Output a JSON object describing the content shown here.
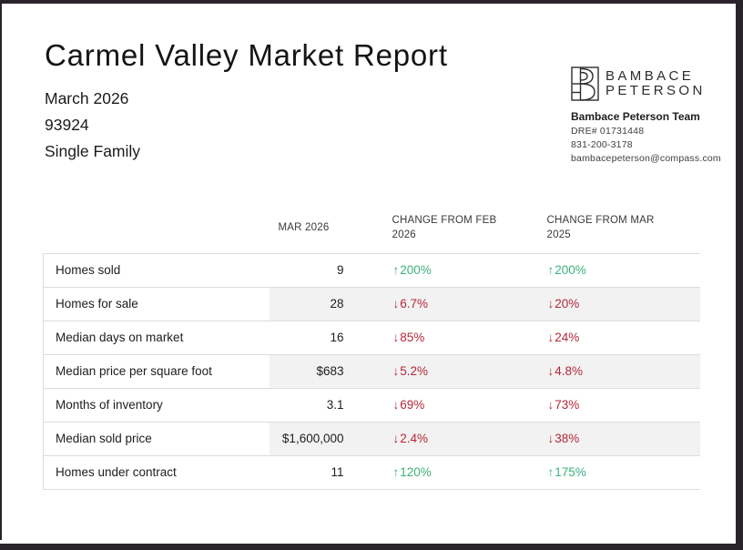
{
  "page": {
    "title": "Carmel Valley Market Report",
    "month": "March 2026",
    "zip": "93924",
    "property_type": "Single Family"
  },
  "brand": {
    "logo_text_line1": "BAMBACE",
    "logo_text_line2": "PETERSON",
    "team_name": "Bambace Peterson Team",
    "dre_number": "DRE# 01731448",
    "phone": "831-200-3178",
    "email": "bambacepeterson@compass.com"
  },
  "icons": {
    "trend_up": "↑",
    "trend_down": "↓"
  },
  "colors": {
    "positive": "#3cb17b",
    "negative": "#b42837",
    "row_alt_background": "#f2f2f2",
    "border": "#dcdcdc",
    "frame": "#29242a"
  },
  "table": {
    "column_headers": [
      "",
      "MAR 2026",
      "CHANGE FROM FEB 2026",
      "CHANGE FROM MAR 2025"
    ],
    "rows": [
      {
        "label": "Homes sold",
        "value": "9",
        "changes": [
          {
            "direction": "up",
            "text": "200%"
          },
          {
            "direction": "up",
            "text": "200%"
          }
        ]
      },
      {
        "label": "Homes for sale",
        "value": "28",
        "changes": [
          {
            "direction": "down",
            "text": "6.7%"
          },
          {
            "direction": "down",
            "text": "20%"
          }
        ]
      },
      {
        "label": "Median days on market",
        "value": "16",
        "changes": [
          {
            "direction": "down",
            "text": "85%"
          },
          {
            "direction": "down",
            "text": "24%"
          }
        ]
      },
      {
        "label": "Median price per square foot",
        "value": "$683",
        "changes": [
          {
            "direction": "down",
            "text": "5.2%"
          },
          {
            "direction": "down",
            "text": "4.8%"
          }
        ]
      },
      {
        "label": "Months of inventory",
        "value": "3.1",
        "changes": [
          {
            "direction": "down",
            "text": "69%"
          },
          {
            "direction": "down",
            "text": "73%"
          }
        ]
      },
      {
        "label": "Median sold price",
        "value": "$1,600,000",
        "changes": [
          {
            "direction": "down",
            "text": "2.4%"
          },
          {
            "direction": "down",
            "text": "38%"
          }
        ]
      },
      {
        "label": "Homes under contract",
        "value": "11",
        "changes": [
          {
            "direction": "up",
            "text": "120%"
          },
          {
            "direction": "up",
            "text": "175%"
          }
        ]
      }
    ]
  }
}
